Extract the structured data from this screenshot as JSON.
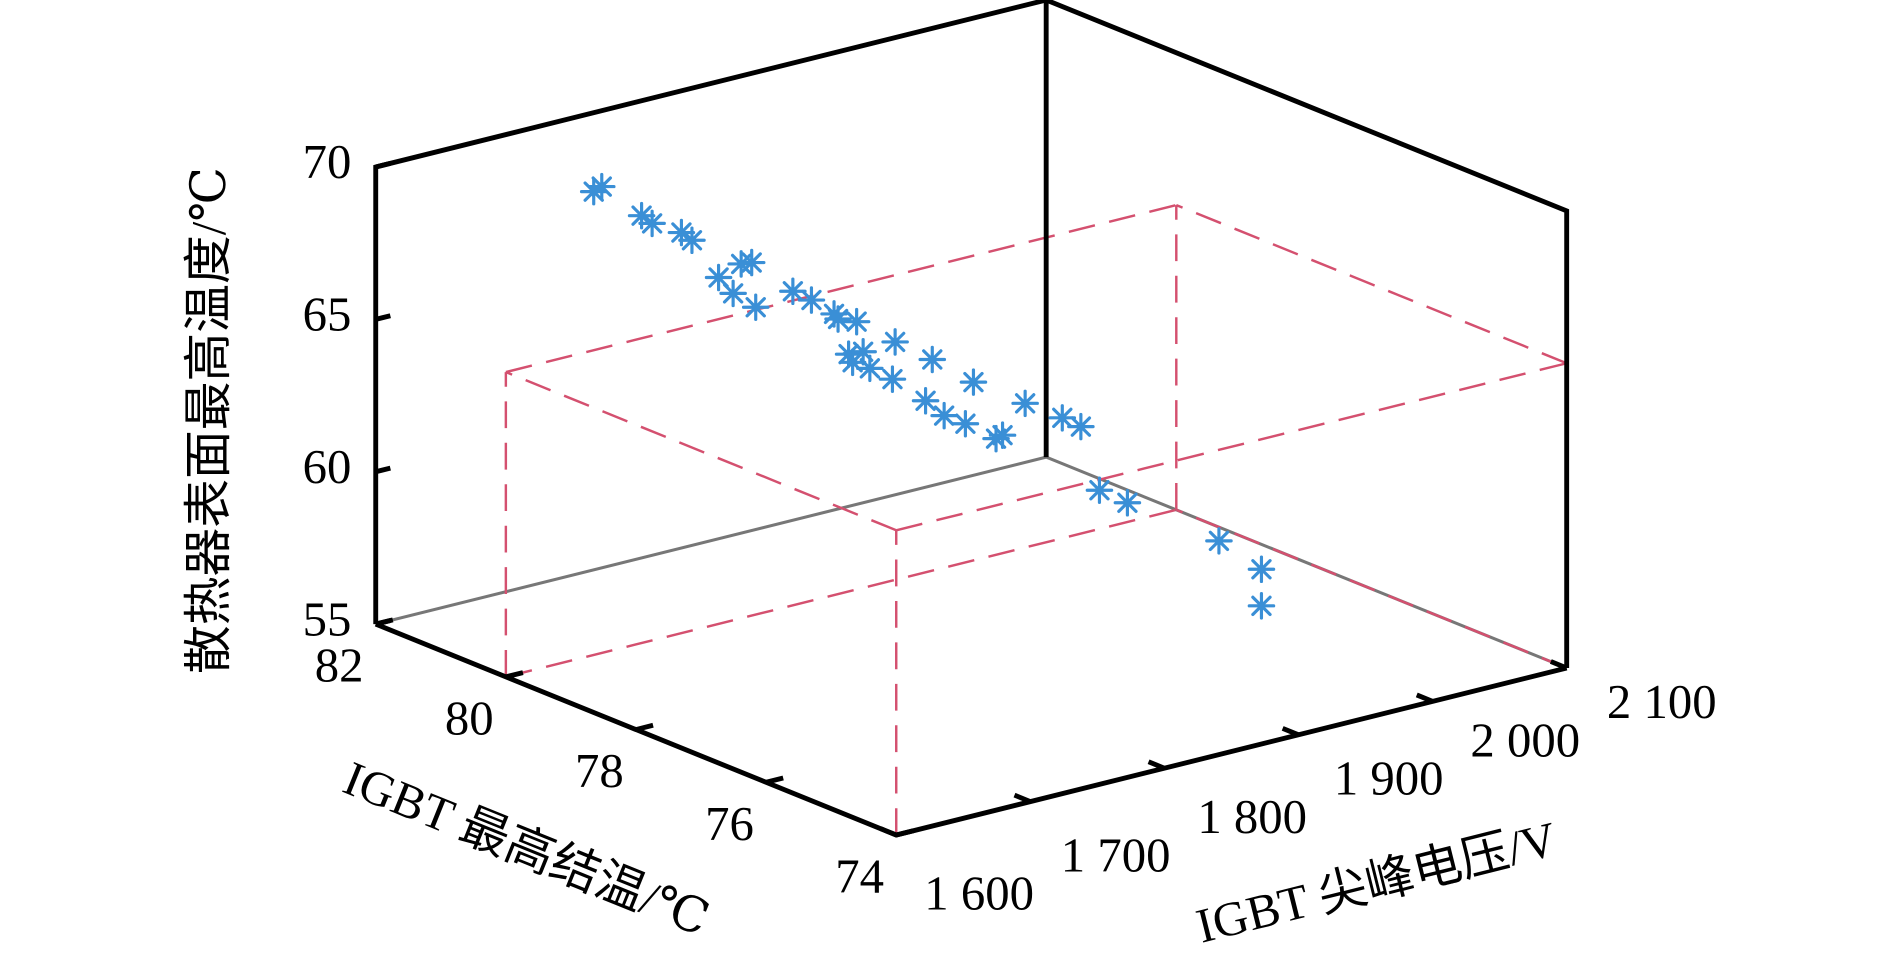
{
  "chart_data": {
    "type": "scatter3d",
    "xlabel": "IGBT 尖峰电压/V",
    "ylabel": "IGBT 最高结温/℃",
    "zlabel": "散热器表面最高温度/℃",
    "color": "#3a8fd6",
    "xlim": [
      1600,
      2100
    ],
    "ylim": [
      74,
      82
    ],
    "zlim": [
      55,
      70
    ],
    "xticks": [
      {
        "value": 1600,
        "label": "1 600"
      },
      {
        "value": 1700,
        "label": "1 700"
      },
      {
        "value": 1800,
        "label": "1 800"
      },
      {
        "value": 1900,
        "label": "1 900"
      },
      {
        "value": 2000,
        "label": "2 000"
      },
      {
        "value": 2100,
        "label": "2 100"
      }
    ],
    "yticks": [
      74,
      76,
      78,
      80,
      82
    ],
    "zticks": [
      55,
      60,
      65,
      70
    ],
    "reference_box": {
      "x": [
        1600,
        2100
      ],
      "y": [
        74,
        80
      ],
      "z": [
        55,
        65
      ]
    },
    "x": [
      1617,
      1623,
      1643,
      1646,
      1663,
      1666,
      1681,
      1687,
      1693,
      1696,
      1699,
      1717,
      1726,
      1738,
      1741,
      1750,
      1744,
      1750,
      1747,
      1755,
      1769,
      1767,
      1787,
      1782,
      1791,
      1802,
      1808,
      1820,
      1820,
      1832,
      1850,
      1859,
      1868,
      1884,
      1928,
      1950,
      1950
    ],
    "y": [
      79.0,
      79.0,
      78.8,
      78.7,
      78.6,
      78.5,
      78.4,
      78.3,
      78.3,
      78.2,
      78.2,
      78.0,
      77.9,
      77.8,
      77.8,
      77.7,
      77.7,
      77.6,
      77.7,
      77.6,
      77.5,
      77.5,
      77.3,
      77.3,
      77.2,
      77.1,
      77.1,
      76.9,
      77.0,
      76.8,
      76.6,
      76.5,
      76.4,
      76.3,
      75.8,
      75.6,
      75.6
    ],
    "z": [
      71.6,
      71.7,
      70.7,
      70.5,
      70.1,
      69.9,
      68.6,
      68.1,
      69.0,
      69.1,
      67.6,
      68.1,
      67.8,
      67.3,
      67.1,
      67.0,
      66.0,
      66.1,
      65.7,
      65.5,
      66.3,
      65.1,
      65.7,
      64.4,
      63.9,
      63.6,
      64.9,
      63.2,
      63.0,
      64.2,
      63.7,
      63.4,
      61.3,
      60.8,
      59.5,
      58.5,
      57.3
    ]
  }
}
